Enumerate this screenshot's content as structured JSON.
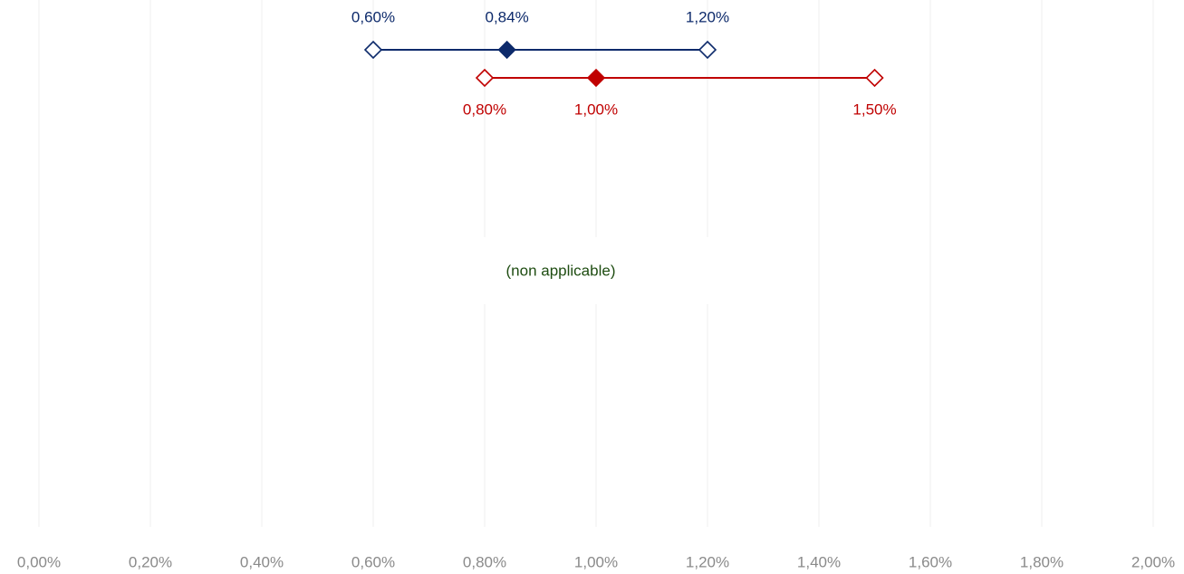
{
  "chart_data": {
    "type": "range",
    "series": [
      {
        "color": "#0d2a6b",
        "values": [
          0.6,
          0.84,
          1.2
        ],
        "value_labels": [
          "0,60%",
          "0,84%",
          "1,20%"
        ]
      },
      {
        "color": "#c00000",
        "values": [
          0.8,
          1.0,
          1.5
        ],
        "value_labels": [
          "0,80%",
          "1,00%",
          "1,50%"
        ]
      }
    ],
    "annotation": "(non applicable)",
    "annotation_color": "#1f4d12",
    "xlim": [
      0,
      2
    ],
    "xticks": [
      {
        "value": 0,
        "label": "0,00%"
      },
      {
        "value": 0.2,
        "label": "0,20%"
      },
      {
        "value": 0.4,
        "label": "0,40%"
      },
      {
        "value": 0.6,
        "label": "0,60%"
      },
      {
        "value": 0.8,
        "label": "0,80%"
      },
      {
        "value": 1.0,
        "label": "1,00%"
      },
      {
        "value": 1.2,
        "label": "1,20%"
      },
      {
        "value": 1.4,
        "label": "1,40%"
      },
      {
        "value": 1.6,
        "label": "1,60%"
      },
      {
        "value": 1.8,
        "label": "1,80%"
      },
      {
        "value": 2.0,
        "label": "2,00%"
      }
    ],
    "grid": true
  }
}
